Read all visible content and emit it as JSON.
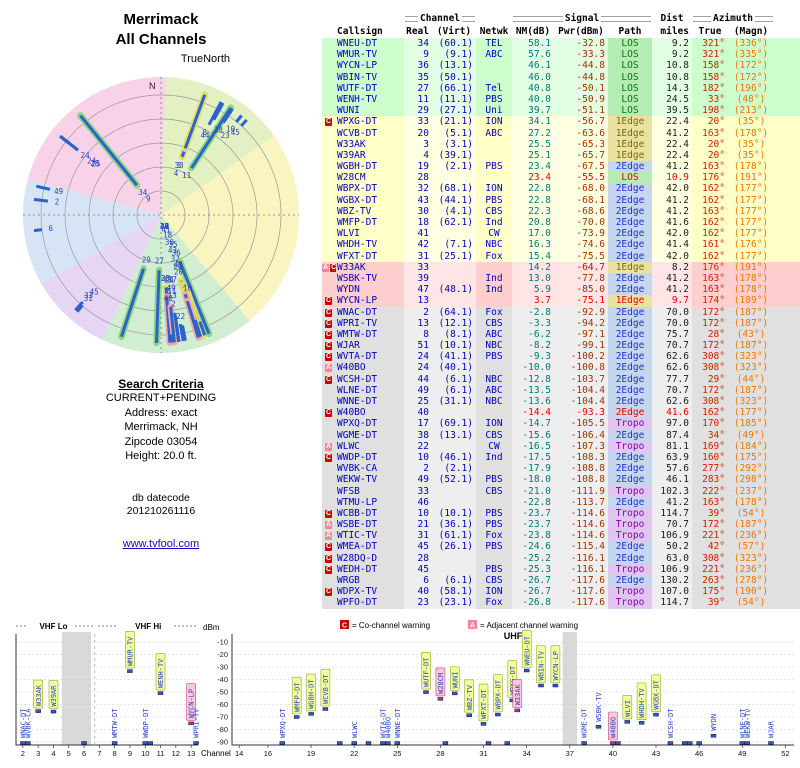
{
  "header": {
    "title1": "Merrimack",
    "title2": "All Channels",
    "truenorth": "TrueNorth",
    "north": "N"
  },
  "search_criteria": {
    "heading": "Search Criteria",
    "lines": [
      "CURRENT+PENDING",
      "Address: exact",
      "Merrimack, NH",
      "Zipcode 03054",
      "Height: 20.0 ft."
    ]
  },
  "datecode": {
    "label": "db datecode",
    "value": "201210261116"
  },
  "link_text": "www.tvfool.com",
  "table_headers": {
    "group": {
      "channel": "Channel",
      "signal": "Signal",
      "dist": "Dist",
      "azimuth": "Azimuth"
    },
    "cols": {
      "callsign": "Callsign",
      "real": "Real",
      "virt": "(Virt)",
      "netwk": "Netwk",
      "nm": "NM(dB)",
      "pwr": "Pwr(dBm)",
      "path": "Path",
      "miles": "miles",
      "true": "True",
      "magn": "(Magn)"
    }
  },
  "legend": {
    "co": {
      "symbol": "C",
      "label": "= Co-channel warning"
    },
    "adj": {
      "symbol": "A",
      "label": "= Adjacent channel warning"
    }
  },
  "colors": {
    "tier_strong": "#ccffcc",
    "tier_moderate": "#ffffc8",
    "tier_weak": "#ffcfcf",
    "tier_poor": "#e0e0e0",
    "path_los": "#007700",
    "path_1edge": "#7a6a00",
    "path_2edge": "#2233cc",
    "path_tropo": "#8800aa",
    "callsign_blue": "#0000bb",
    "nm_teal": "#007777",
    "pwr_maroon": "#993300",
    "azimuth_true_red": "#cc2200",
    "azimuth_magn_orange": "#ee7700",
    "warn_co": "#cc0000",
    "warn_adj": "#ee8899",
    "bar_blue": "#2b62cc",
    "hot_red": "#e80000"
  },
  "chart_data": {
    "type": "composite",
    "stations": [
      {
        "w": "",
        "c": "WNEU-DT",
        "r": "34",
        "v": "(60.1)",
        "n": "TEL",
        "nm": "58.1",
        "pw": "-32.8",
        "p": "LOS",
        "d": "9.2",
        "t": "321°",
        "m": "(336°)",
        "tr": "g"
      },
      {
        "w": "",
        "c": "WMUR-TV",
        "r": "9",
        "v": "(9.1)",
        "n": "ABC",
        "nm": "57.6",
        "pw": "-33.3",
        "p": "LOS",
        "d": "9.2",
        "t": "321°",
        "m": "(335°)",
        "tr": "g"
      },
      {
        "w": "",
        "c": "WYCN-LP",
        "r": "36",
        "v": "(13.1)",
        "n": "",
        "nm": "46.1",
        "pw": "-44.8",
        "p": "LOS",
        "d": "10.8",
        "t": "158°",
        "m": "(172°)",
        "tr": "g"
      },
      {
        "w": "",
        "c": "WBIN-TV",
        "r": "35",
        "v": "(50.1)",
        "n": "",
        "nm": "46.0",
        "pw": "-44.8",
        "p": "LOS",
        "d": "10.8",
        "t": "158°",
        "m": "(172°)",
        "tr": "g"
      },
      {
        "w": "",
        "c": "WUTF-DT",
        "r": "27",
        "v": "(66.1)",
        "n": "Tel",
        "nm": "40.8",
        "pw": "-50.1",
        "p": "LOS",
        "d": "14.3",
        "t": "182°",
        "m": "(196°)",
        "tr": "g"
      },
      {
        "w": "",
        "c": "WENH-TV",
        "r": "11",
        "v": "(11.1)",
        "n": "PBS",
        "nm": "40.0",
        "pw": "-50.9",
        "p": "LOS",
        "d": "24.5",
        "t": "33°",
        "m": "(48°)",
        "tr": "g"
      },
      {
        "w": "",
        "c": "WUNI",
        "r": "29",
        "v": "(27.1)",
        "n": "Uni",
        "nm": "39.7",
        "pw": "-51.1",
        "p": "LOS",
        "d": "39.5",
        "t": "198°",
        "m": "(213°)",
        "tr": "g"
      },
      {
        "w": "C",
        "c": "WPXG-DT",
        "r": "33",
        "v": "(21.1)",
        "n": "ION",
        "nm": "34.1",
        "pw": "-56.7",
        "p": "1Edge",
        "d": "22.4",
        "t": "20°",
        "m": "(35°)",
        "tr": "y"
      },
      {
        "w": "",
        "c": "WCVB-DT",
        "r": "20",
        "v": "(5.1)",
        "n": "ABC",
        "nm": "27.2",
        "pw": "-63.6",
        "p": "1Edge",
        "d": "41.2",
        "t": "163°",
        "m": "(178°)",
        "tr": "y"
      },
      {
        "w": "",
        "c": "W33AK",
        "r": "3",
        "v": "(3.1)",
        "n": "",
        "nm": "25.5",
        "pw": "-65.3",
        "p": "1Edge",
        "d": "22.4",
        "t": "20°",
        "m": "(35°)",
        "tr": "y"
      },
      {
        "w": "",
        "c": "W39AR",
        "r": "4",
        "v": "(39.1)",
        "n": "",
        "nm": "25.1",
        "pw": "-65.7",
        "p": "1Edge",
        "d": "22.4",
        "t": "20°",
        "m": "(35°)",
        "tr": "y"
      },
      {
        "w": "",
        "c": "WGBH-DT",
        "r": "19",
        "v": "(2.1)",
        "n": "PBS",
        "nm": "23.4",
        "pw": "-67.5",
        "p": "2Edge",
        "d": "41.2",
        "t": "163°",
        "m": "(178°)",
        "tr": "y"
      },
      {
        "w": "",
        "c": "W28CM",
        "r": "28",
        "v": "",
        "n": "",
        "nm": "23.4",
        "pw": "-55.5",
        "p": "LOS",
        "d": "10.9",
        "t": "176°",
        "m": "(191°)",
        "tr": "y",
        "h": 1
      },
      {
        "w": "",
        "c": "WBPX-DT",
        "r": "32",
        "v": "(68.1)",
        "n": "ION",
        "nm": "22.8",
        "pw": "-68.0",
        "p": "2Edge",
        "d": "42.0",
        "t": "162°",
        "m": "(177°)",
        "tr": "y"
      },
      {
        "w": "",
        "c": "WGBX-DT",
        "r": "43",
        "v": "(44.1)",
        "n": "PBS",
        "nm": "22.8",
        "pw": "-68.1",
        "p": "2Edge",
        "d": "41.2",
        "t": "162°",
        "m": "(177°)",
        "tr": "y"
      },
      {
        "w": "",
        "c": "WBZ-TV",
        "r": "30",
        "v": "(4.1)",
        "n": "CBS",
        "nm": "22.3",
        "pw": "-68.6",
        "p": "2Edge",
        "d": "41.2",
        "t": "163°",
        "m": "(177°)",
        "tr": "y"
      },
      {
        "w": "",
        "c": "WMFP-DT",
        "r": "18",
        "v": "(62.1)",
        "n": "Ind",
        "nm": "20.8",
        "pw": "-70.0",
        "p": "2Edge",
        "d": "41.6",
        "t": "162°",
        "m": "(177°)",
        "tr": "y"
      },
      {
        "w": "",
        "c": "WLVI",
        "r": "41",
        "v": "",
        "n": "CW",
        "nm": "17.0",
        "pw": "-73.9",
        "p": "2Edge",
        "d": "42.0",
        "t": "162°",
        "m": "(177°)",
        "tr": "y"
      },
      {
        "w": "",
        "c": "WHDH-TV",
        "r": "42",
        "v": "(7.1)",
        "n": "NBC",
        "nm": "16.3",
        "pw": "-74.6",
        "p": "2Edge",
        "d": "41.4",
        "t": "161°",
        "m": "(176°)",
        "tr": "y"
      },
      {
        "w": "",
        "c": "WFXT-DT",
        "r": "31",
        "v": "(25.1)",
        "n": "Fox",
        "nm": "15.4",
        "pw": "-75.5",
        "p": "2Edge",
        "d": "42.0",
        "t": "162°",
        "m": "(177°)",
        "tr": "y"
      },
      {
        "w": "AC",
        "c": "W33AK",
        "r": "33",
        "v": "",
        "n": "",
        "nm": "14.2",
        "pw": "-64.7",
        "p": "1Edge",
        "d": "8.2",
        "t": "176°",
        "m": "(191°)",
        "tr": "p",
        "h": 2
      },
      {
        "w": "",
        "c": "WSBK-TV",
        "r": "39",
        "v": "",
        "n": "Ind",
        "nm": "13.0",
        "pw": "-77.8",
        "p": "2Edge",
        "d": "41.2",
        "t": "163°",
        "m": "(178°)",
        "tr": "p"
      },
      {
        "w": "",
        "c": "WYDN",
        "r": "47",
        "v": "(48.1)",
        "n": "Ind",
        "nm": "5.9",
        "pw": "-85.0",
        "p": "2Edge",
        "d": "41.2",
        "t": "163°",
        "m": "(178°)",
        "tr": "p"
      },
      {
        "w": "C",
        "c": "WYCN-LP",
        "r": "13",
        "v": "",
        "n": "",
        "nm": "3.7",
        "pw": "-75.1",
        "p": "1Edge",
        "d": "9.7",
        "t": "174°",
        "m": "(189°)",
        "tr": "p",
        "h": 1
      },
      {
        "w": "C",
        "c": "WNAC-DT",
        "r": "2",
        "v": "(64.1)",
        "n": "Fox",
        "nm": "-2.8",
        "pw": "-92.9",
        "p": "2Edge",
        "d": "70.0",
        "t": "172°",
        "m": "(187°)",
        "tr": "x"
      },
      {
        "w": "C",
        "c": "WPRI-TV",
        "r": "13",
        "v": "(12.1)",
        "n": "CBS",
        "nm": "-3.3",
        "pw": "-94.2",
        "p": "2Edge",
        "d": "70.0",
        "t": "172°",
        "m": "(187°)",
        "tr": "x"
      },
      {
        "w": "C",
        "c": "WMTW-DT",
        "r": "8",
        "v": "(8.1)",
        "n": "ABC",
        "nm": "-6.2",
        "pw": "-97.1",
        "p": "2Edge",
        "d": "75.7",
        "t": "28°",
        "m": "(43°)",
        "tr": "x"
      },
      {
        "w": "C",
        "c": "WJAR",
        "r": "51",
        "v": "(10.1)",
        "n": "NBC",
        "nm": "-8.2",
        "pw": "-99.1",
        "p": "2Edge",
        "d": "70.7",
        "t": "172°",
        "m": "(187°)",
        "tr": "x"
      },
      {
        "w": "C",
        "c": "WVTA-DT",
        "r": "24",
        "v": "(41.1)",
        "n": "PBS",
        "nm": "-9.3",
        "pw": "-100.2",
        "p": "2Edge",
        "d": "62.6",
        "t": "308°",
        "m": "(323°)",
        "tr": "x"
      },
      {
        "w": "A",
        "c": "W40BO",
        "r": "24",
        "v": "(40.1)",
        "n": "",
        "nm": "-10.0",
        "pw": "-100.8",
        "p": "2Edge",
        "d": "62.6",
        "t": "308°",
        "m": "(323°)",
        "tr": "x"
      },
      {
        "w": "C",
        "c": "WCSH-DT",
        "r": "44",
        "v": "(6.1)",
        "n": "NBC",
        "nm": "-12.8",
        "pw": "-103.7",
        "p": "2Edge",
        "d": "77.7",
        "t": "29°",
        "m": "(44°)",
        "tr": "x"
      },
      {
        "w": "",
        "c": "WLNE-DT",
        "r": "49",
        "v": "(6.1)",
        "n": "ABC",
        "nm": "-13.5",
        "pw": "-104.4",
        "p": "2Edge",
        "d": "70.7",
        "t": "172°",
        "m": "(187°)",
        "tr": "x"
      },
      {
        "w": "",
        "c": "WNNE-DT",
        "r": "25",
        "v": "(31.1)",
        "n": "NBC",
        "nm": "-13.6",
        "pw": "-104.4",
        "p": "2Edge",
        "d": "62.6",
        "t": "308°",
        "m": "(323°)",
        "tr": "x"
      },
      {
        "w": "C",
        "c": "W40BO",
        "r": "40",
        "v": "",
        "n": "",
        "nm": "-14.4",
        "pw": "-93.3",
        "p": "2Edge",
        "d": "41.6",
        "t": "162°",
        "m": "(177°)",
        "tr": "x",
        "h": 1
      },
      {
        "w": "",
        "c": "WPXQ-DT",
        "r": "17",
        "v": "(69.1)",
        "n": "ION",
        "nm": "-14.7",
        "pw": "-105.5",
        "p": "Tropo",
        "d": "97.0",
        "t": "170°",
        "m": "(185°)",
        "tr": "x"
      },
      {
        "w": "",
        "c": "WGME-DT",
        "r": "38",
        "v": "(13.1)",
        "n": "CBS",
        "nm": "-15.6",
        "pw": "-106.4",
        "p": "2Edge",
        "d": "87.4",
        "t": "34°",
        "m": "(49°)",
        "tr": "x"
      },
      {
        "w": "A",
        "c": "WLWC",
        "r": "22",
        "v": "",
        "n": "CW",
        "nm": "-16.5",
        "pw": "-107.3",
        "p": "Tropo",
        "d": "81.1",
        "t": "169°",
        "m": "(184°)",
        "tr": "x"
      },
      {
        "w": "C",
        "c": "WWDP-DT",
        "r": "10",
        "v": "(46.1)",
        "n": "Ind",
        "nm": "-17.5",
        "pw": "-108.3",
        "p": "2Edge",
        "d": "63.9",
        "t": "160°",
        "m": "(175°)",
        "tr": "x"
      },
      {
        "w": "",
        "c": "WVBK-CA",
        "r": "2",
        "v": "(2.1)",
        "n": "",
        "nm": "-17.9",
        "pw": "-108.8",
        "p": "2Edge",
        "d": "57.6",
        "t": "277°",
        "m": "(292°)",
        "tr": "x"
      },
      {
        "w": "",
        "c": "WEKW-TV",
        "r": "49",
        "v": "(52.1)",
        "n": "PBS",
        "nm": "-18.0",
        "pw": "-108.8",
        "p": "2Edge",
        "d": "46.1",
        "t": "283°",
        "m": "(298°)",
        "tr": "x"
      },
      {
        "w": "",
        "c": "WFSB",
        "r": "33",
        "v": "",
        "n": "CBS",
        "nm": "-21.0",
        "pw": "-111.9",
        "p": "Tropo",
        "d": "102.3",
        "t": "222°",
        "m": "(237°)",
        "tr": "x"
      },
      {
        "w": "",
        "c": "WTMU-LP",
        "r": "46",
        "v": "",
        "n": "",
        "nm": "-22.8",
        "pw": "-113.7",
        "p": "2Edge",
        "d": "41.2",
        "t": "163°",
        "m": "(178°)",
        "tr": "x"
      },
      {
        "w": "C",
        "c": "WCBB-DT",
        "r": "10",
        "v": "(10.1)",
        "n": "PBS",
        "nm": "-23.7",
        "pw": "-114.6",
        "p": "Tropo",
        "d": "114.7",
        "t": "39°",
        "m": "(54°)",
        "tr": "x"
      },
      {
        "w": "A",
        "c": "WSBE-DT",
        "r": "21",
        "v": "(36.1)",
        "n": "PBS",
        "nm": "-23.7",
        "pw": "-114.6",
        "p": "Tropo",
        "d": "70.7",
        "t": "172°",
        "m": "(187°)",
        "tr": "x"
      },
      {
        "w": "A",
        "c": "WTIC-TV",
        "r": "31",
        "v": "(61.1)",
        "n": "Fox",
        "nm": "-23.8",
        "pw": "-114.6",
        "p": "Tropo",
        "d": "106.9",
        "t": "221°",
        "m": "(236°)",
        "tr": "x"
      },
      {
        "w": "C",
        "c": "WMEA-DT",
        "r": "45",
        "v": "(26.1)",
        "n": "PBS",
        "nm": "-24.6",
        "pw": "-115.4",
        "p": "2Edge",
        "d": "50.2",
        "t": "42°",
        "m": "(57°)",
        "tr": "x"
      },
      {
        "w": "C",
        "c": "W28DQ-D",
        "r": "28",
        "v": "",
        "n": "",
        "nm": "-25.2",
        "pw": "-116.1",
        "p": "2Edge",
        "d": "63.0",
        "t": "308°",
        "m": "(323°)",
        "tr": "x"
      },
      {
        "w": "C",
        "c": "WEDH-DT",
        "r": "45",
        "v": "",
        "n": "PBS",
        "nm": "-25.3",
        "pw": "-116.1",
        "p": "Tropo",
        "d": "106.9",
        "t": "221°",
        "m": "(236°)",
        "tr": "x"
      },
      {
        "w": "",
        "c": "WRGB",
        "r": "6",
        "v": "(6.1)",
        "n": "CBS",
        "nm": "-26.7",
        "pw": "-117.6",
        "p": "2Edge",
        "d": "130.2",
        "t": "263°",
        "m": "(278°)",
        "tr": "x"
      },
      {
        "w": "C",
        "c": "WDPX-TV",
        "r": "40",
        "v": "(58.1)",
        "n": "ION",
        "nm": "-26.7",
        "pw": "-117.6",
        "p": "Tropo",
        "d": "107.0",
        "t": "175°",
        "m": "(190°)",
        "tr": "x"
      },
      {
        "w": "",
        "c": "WPFO-DT",
        "r": "23",
        "v": "(23.1)",
        "n": "Fox",
        "nm": "-26.8",
        "pw": "-117.6",
        "p": "Tropo",
        "d": "114.7",
        "t": "39°",
        "m": "(54°)",
        "tr": "x"
      }
    ],
    "radar": {
      "type": "polar",
      "north_label": "N",
      "rings": 5,
      "angle_series": "azimuth_true_deg",
      "radius_series": "noise_margin_db",
      "wedges": [
        {
          "from": 285,
          "to": 362,
          "color": "#f8d2e8"
        },
        {
          "from": 2,
          "to": 55,
          "color": "#e2f0c2"
        },
        {
          "from": 55,
          "to": 140,
          "color": "#faf4c0"
        },
        {
          "from": 140,
          "to": 205,
          "color": "#d2eed2"
        },
        {
          "from": 205,
          "to": 240,
          "color": "#e6d6f4"
        },
        {
          "from": 240,
          "to": 285,
          "color": "#d6e4f6"
        }
      ]
    },
    "band_chart": {
      "type": "scatter",
      "bands": {
        "vhf_lo": "VHF Lo",
        "vhf_hi": "VHF Hi",
        "uhf": "UHF"
      },
      "ylabel": "dBm",
      "xlabel": "Channel",
      "x_series": "real_channel",
      "y_series": "pwr_dbm",
      "y_ticks": [
        -10,
        -20,
        -30,
        -40,
        -50,
        -60,
        -70,
        -80,
        -90
      ],
      "left_ticks": [
        2,
        3,
        4,
        5,
        6,
        7,
        8,
        9,
        10,
        11,
        12,
        13
      ],
      "right_ticks": [
        14,
        16,
        19,
        22,
        25,
        28,
        31,
        34,
        37,
        40,
        43,
        46,
        49,
        52
      ],
      "gray_bands": [
        {
          "chart": "left",
          "from": 4.55,
          "to": 6.45
        },
        {
          "chart": "right",
          "from": 36.5,
          "to": 37.5
        }
      ]
    }
  }
}
